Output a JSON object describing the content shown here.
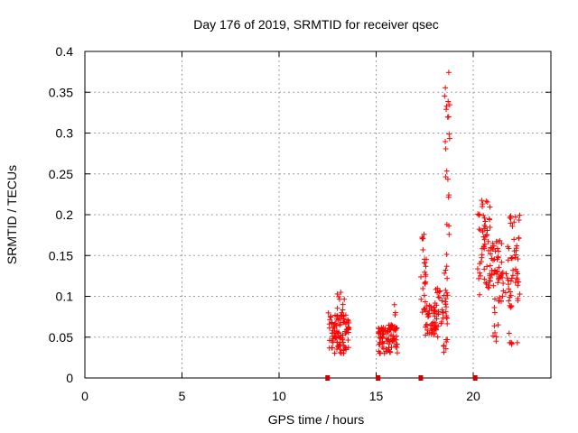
{
  "chart_data": {
    "type": "scatter",
    "title": "Day 176 of 2019, SRMTID for receiver qsec",
    "xlabel": "GPS time / hours",
    "ylabel": "SRMTID / TECUs",
    "xlim": [
      0,
      24
    ],
    "ylim": [
      0,
      0.4
    ],
    "xticks": [
      0,
      5,
      10,
      15,
      20
    ],
    "yticks": [
      0,
      0.05,
      0.1,
      0.15,
      0.2,
      0.25,
      0.3,
      0.35,
      0.4
    ],
    "xtick_labels": [
      "0",
      "5",
      "10",
      "15",
      "20"
    ],
    "ytick_labels": [
      "0",
      "0.05",
      "0.1",
      "0.15",
      "0.2",
      "0.25",
      "0.3",
      "0.35",
      "0.4"
    ],
    "grid": true,
    "marker": "+",
    "color": "#ff0000",
    "gap_markers_x": [
      12.5,
      15.1,
      17.3,
      20.1
    ],
    "clusters": [
      {
        "x_range": [
          12.5,
          13.6
        ],
        "y_range": [
          0.03,
          0.08
        ],
        "n": 100
      },
      {
        "x_range": [
          12.6,
          13.4
        ],
        "y_range": [
          0.08,
          0.105
        ],
        "n": 8
      },
      {
        "x_range": [
          15.1,
          16.1
        ],
        "y_range": [
          0.03,
          0.065
        ],
        "n": 90
      },
      {
        "x_range": [
          15.8,
          16.0
        ],
        "y_range": [
          0.07,
          0.09
        ],
        "n": 3
      },
      {
        "x_range": [
          17.3,
          17.6
        ],
        "y_range": [
          0.08,
          0.18
        ],
        "n": 25
      },
      {
        "x_range": [
          17.5,
          18.2
        ],
        "y_range": [
          0.05,
          0.09
        ],
        "n": 45
      },
      {
        "x_range": [
          18.0,
          18.7
        ],
        "y_range": [
          0.065,
          0.11
        ],
        "n": 35
      },
      {
        "x_range": [
          18.4,
          18.7
        ],
        "y_range": [
          0.03,
          0.06
        ],
        "n": 8
      },
      {
        "x_range": [
          18.5,
          18.8
        ],
        "y_range": [
          0.12,
          0.2
        ],
        "n": 8
      },
      {
        "x_range": [
          18.5,
          18.8
        ],
        "y_range": [
          0.22,
          0.375
        ],
        "n": 18
      },
      {
        "x_range": [
          20.2,
          20.9
        ],
        "y_range": [
          0.1,
          0.22
        ],
        "n": 50
      },
      {
        "x_range": [
          20.8,
          21.5
        ],
        "y_range": [
          0.11,
          0.17
        ],
        "n": 45
      },
      {
        "x_range": [
          21.0,
          21.5
        ],
        "y_range": [
          0.035,
          0.1
        ],
        "n": 14
      },
      {
        "x_range": [
          21.5,
          22.4
        ],
        "y_range": [
          0.1,
          0.2
        ],
        "n": 50
      },
      {
        "x_range": [
          21.8,
          22.4
        ],
        "y_range": [
          0.04,
          0.1
        ],
        "n": 14
      }
    ]
  }
}
